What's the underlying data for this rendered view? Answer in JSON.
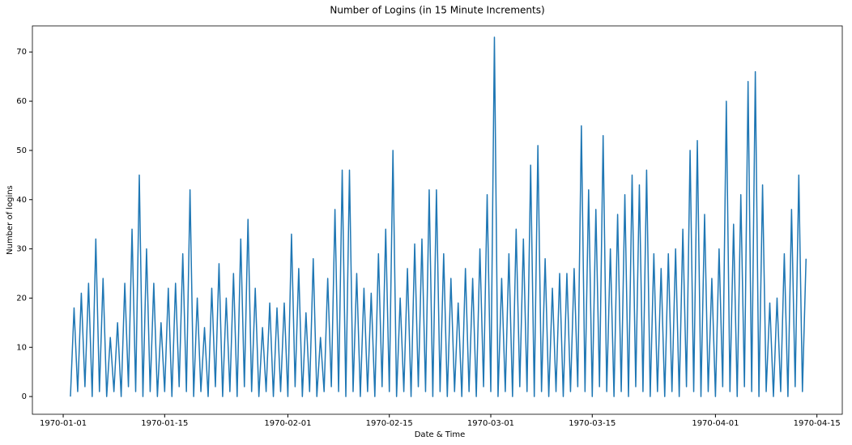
{
  "chart_data": {
    "type": "line",
    "title": "Number of Logins (in 15 Minute Increments)",
    "x_label": "Date & Time",
    "y_label": "Number of logins",
    "color": "#1f77b4",
    "xlim": [
      -4.25,
      107.5
    ],
    "ylim": [
      -3.6,
      75.3
    ],
    "xticks": [
      {
        "value": 0,
        "label": "1970-01-01"
      },
      {
        "value": 14,
        "label": "1970-01-15"
      },
      {
        "value": 31,
        "label": "1970-02-01"
      },
      {
        "value": 45,
        "label": "1970-02-15"
      },
      {
        "value": 59,
        "label": "1970-03-01"
      },
      {
        "value": 73,
        "label": "1970-03-15"
      },
      {
        "value": 90,
        "label": "1970-04-01"
      },
      {
        "value": 104,
        "label": "1970-04-15"
      }
    ],
    "yticks": [
      0,
      10,
      20,
      30,
      40,
      50,
      60,
      70
    ],
    "x": [
      1,
      1.5,
      2,
      2.5,
      3,
      3.5,
      4,
      4.5,
      5,
      5.5,
      6,
      6.5,
      7,
      7.5,
      8,
      8.5,
      9,
      9.5,
      10,
      10.5,
      11,
      11.5,
      12,
      12.5,
      13,
      13.5,
      14,
      14.5,
      15,
      15.5,
      16,
      16.5,
      17,
      17.5,
      18,
      18.5,
      19,
      19.5,
      20,
      20.5,
      21,
      21.5,
      22,
      22.5,
      23,
      23.5,
      24,
      24.5,
      25,
      25.5,
      26,
      26.5,
      27,
      27.5,
      28,
      28.5,
      29,
      29.5,
      30,
      30.5,
      31,
      31.5,
      32,
      32.5,
      33,
      33.5,
      34,
      34.5,
      35,
      35.5,
      36,
      36.5,
      37,
      37.5,
      38,
      38.5,
      39,
      39.5,
      40,
      40.5,
      41,
      41.5,
      42,
      42.5,
      43,
      43.5,
      44,
      44.5,
      45,
      45.5,
      46,
      46.5,
      47,
      47.5,
      48,
      48.5,
      49,
      49.5,
      50,
      50.5,
      51,
      51.5,
      52,
      52.5,
      53,
      53.5,
      54,
      54.5,
      55,
      55.5,
      56,
      56.5,
      57,
      57.5,
      58,
      58.5,
      59,
      59.5,
      60,
      60.5,
      61,
      61.5,
      62,
      62.5,
      63,
      63.5,
      64,
      64.5,
      65,
      65.5,
      66,
      66.5,
      67,
      67.5,
      68,
      68.5,
      69,
      69.5,
      70,
      70.5,
      71,
      71.5,
      72,
      72.5,
      73,
      73.5,
      74,
      74.5,
      75,
      75.5,
      76,
      76.5,
      77,
      77.5,
      78,
      78.5,
      79,
      79.5,
      80,
      80.5,
      81,
      81.5,
      82,
      82.5,
      83,
      83.5,
      84,
      84.5,
      85,
      85.5,
      86,
      86.5,
      87,
      87.5,
      88,
      88.5,
      89,
      89.5,
      90,
      90.5,
      91,
      91.5,
      92,
      92.5,
      93,
      93.5,
      94,
      94.5,
      95,
      95.5,
      96,
      96.5,
      97,
      97.5,
      98,
      98.5,
      99,
      99.5,
      100,
      100.5,
      101,
      101.5,
      102,
      102.5
    ],
    "values": [
      0,
      18,
      1,
      21,
      2,
      23,
      0,
      32,
      1,
      24,
      0,
      12,
      1,
      15,
      0,
      23,
      2,
      34,
      1,
      45,
      0,
      30,
      1,
      23,
      0,
      15,
      1,
      22,
      0,
      23,
      2,
      29,
      1,
      42,
      0,
      20,
      1,
      14,
      0,
      22,
      2,
      27,
      0,
      20,
      1,
      25,
      0,
      32,
      2,
      36,
      1,
      22,
      0,
      14,
      1,
      19,
      0,
      18,
      1,
      19,
      0,
      33,
      2,
      26,
      0,
      17,
      1,
      28,
      0,
      12,
      1,
      24,
      2,
      38,
      1,
      46,
      0,
      46,
      1,
      25,
      0,
      22,
      1,
      21,
      0,
      29,
      2,
      34,
      1,
      50,
      0,
      20,
      1,
      26,
      0,
      31,
      2,
      32,
      1,
      42,
      0,
      42,
      1,
      29,
      0,
      24,
      1,
      19,
      0,
      26,
      1,
      24,
      0,
      30,
      2,
      41,
      1,
      73,
      0,
      24,
      1,
      29,
      0,
      34,
      2,
      32,
      1,
      47,
      0,
      51,
      1,
      28,
      0,
      22,
      1,
      25,
      0,
      25,
      1,
      26,
      2,
      55,
      1,
      42,
      0,
      38,
      2,
      53,
      1,
      30,
      0,
      37,
      1,
      41,
      0,
      45,
      2,
      43,
      1,
      46,
      0,
      29,
      1,
      26,
      0,
      29,
      1,
      30,
      0,
      34,
      2,
      50,
      1,
      52,
      0,
      37,
      1,
      24,
      0,
      30,
      2,
      60,
      1,
      35,
      0,
      41,
      2,
      64,
      1,
      66,
      0,
      43,
      1,
      19,
      0,
      20,
      1,
      29,
      0,
      38,
      2,
      45,
      1,
      28
    ]
  }
}
